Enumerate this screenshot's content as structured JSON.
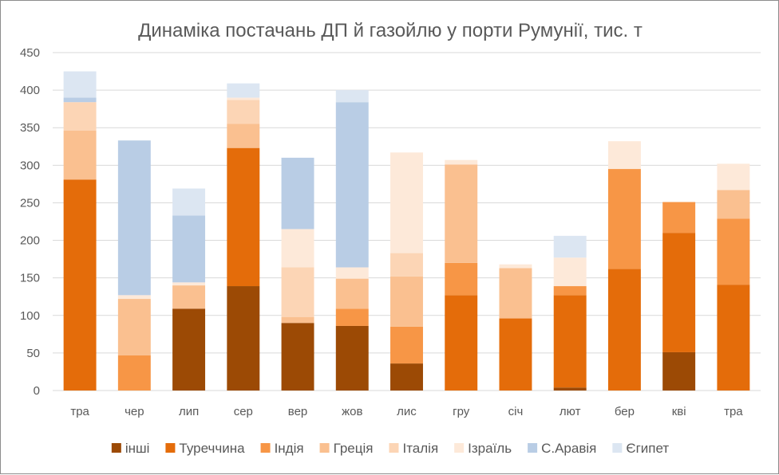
{
  "chart_data": {
    "type": "bar",
    "stacked": true,
    "title": "Динаміка постачань ДП й газойлю у порти Румунії, тис. т",
    "xlabel": "",
    "ylabel": "",
    "ylim": [
      0,
      450
    ],
    "yticks": [
      0,
      50,
      100,
      150,
      200,
      250,
      300,
      350,
      400,
      450
    ],
    "grid": true,
    "legend_position": "bottom",
    "categories": [
      "тра",
      "чер",
      "лип",
      "сер",
      "вер",
      "жов",
      "лис",
      "гру",
      "січ",
      "лют",
      "бер",
      "кві",
      "тра"
    ],
    "series": [
      {
        "name": "інші",
        "color": "#9c4a05",
        "values": [
          0,
          0,
          109,
          139,
          90,
          86,
          36,
          0,
          0,
          4,
          0,
          51,
          0
        ]
      },
      {
        "name": "Туреччина",
        "color": "#e46c0a",
        "values": [
          281,
          0,
          0,
          184,
          0,
          0,
          0,
          127,
          96,
          123,
          162,
          159,
          141
        ]
      },
      {
        "name": "Індія",
        "color": "#f79646",
        "values": [
          0,
          47,
          0,
          0,
          0,
          23,
          49,
          43,
          0,
          12,
          133,
          41,
          88
        ]
      },
      {
        "name": "Греція",
        "color": "#fac090",
        "values": [
          65,
          75,
          31,
          32,
          8,
          40,
          67,
          131,
          67,
          0,
          0,
          0,
          38
        ]
      },
      {
        "name": "Італія",
        "color": "#fcd5b5",
        "values": [
          38,
          0,
          0,
          32,
          66,
          0,
          31,
          0,
          0,
          0,
          0,
          0,
          0
        ]
      },
      {
        "name": "Ізраїль",
        "color": "#fde9d9",
        "values": [
          0,
          5,
          4,
          3,
          51,
          15,
          134,
          6,
          5,
          38,
          37,
          0,
          35
        ]
      },
      {
        "name": "С.Аравія",
        "color": "#b9cde5",
        "values": [
          6,
          206,
          89,
          0,
          95,
          220,
          0,
          0,
          0,
          0,
          0,
          0,
          0
        ]
      },
      {
        "name": "Єгипет",
        "color": "#dce6f2",
        "values": [
          35,
          0,
          36,
          19,
          0,
          16,
          0,
          0,
          0,
          29,
          0,
          0,
          0
        ]
      }
    ]
  }
}
